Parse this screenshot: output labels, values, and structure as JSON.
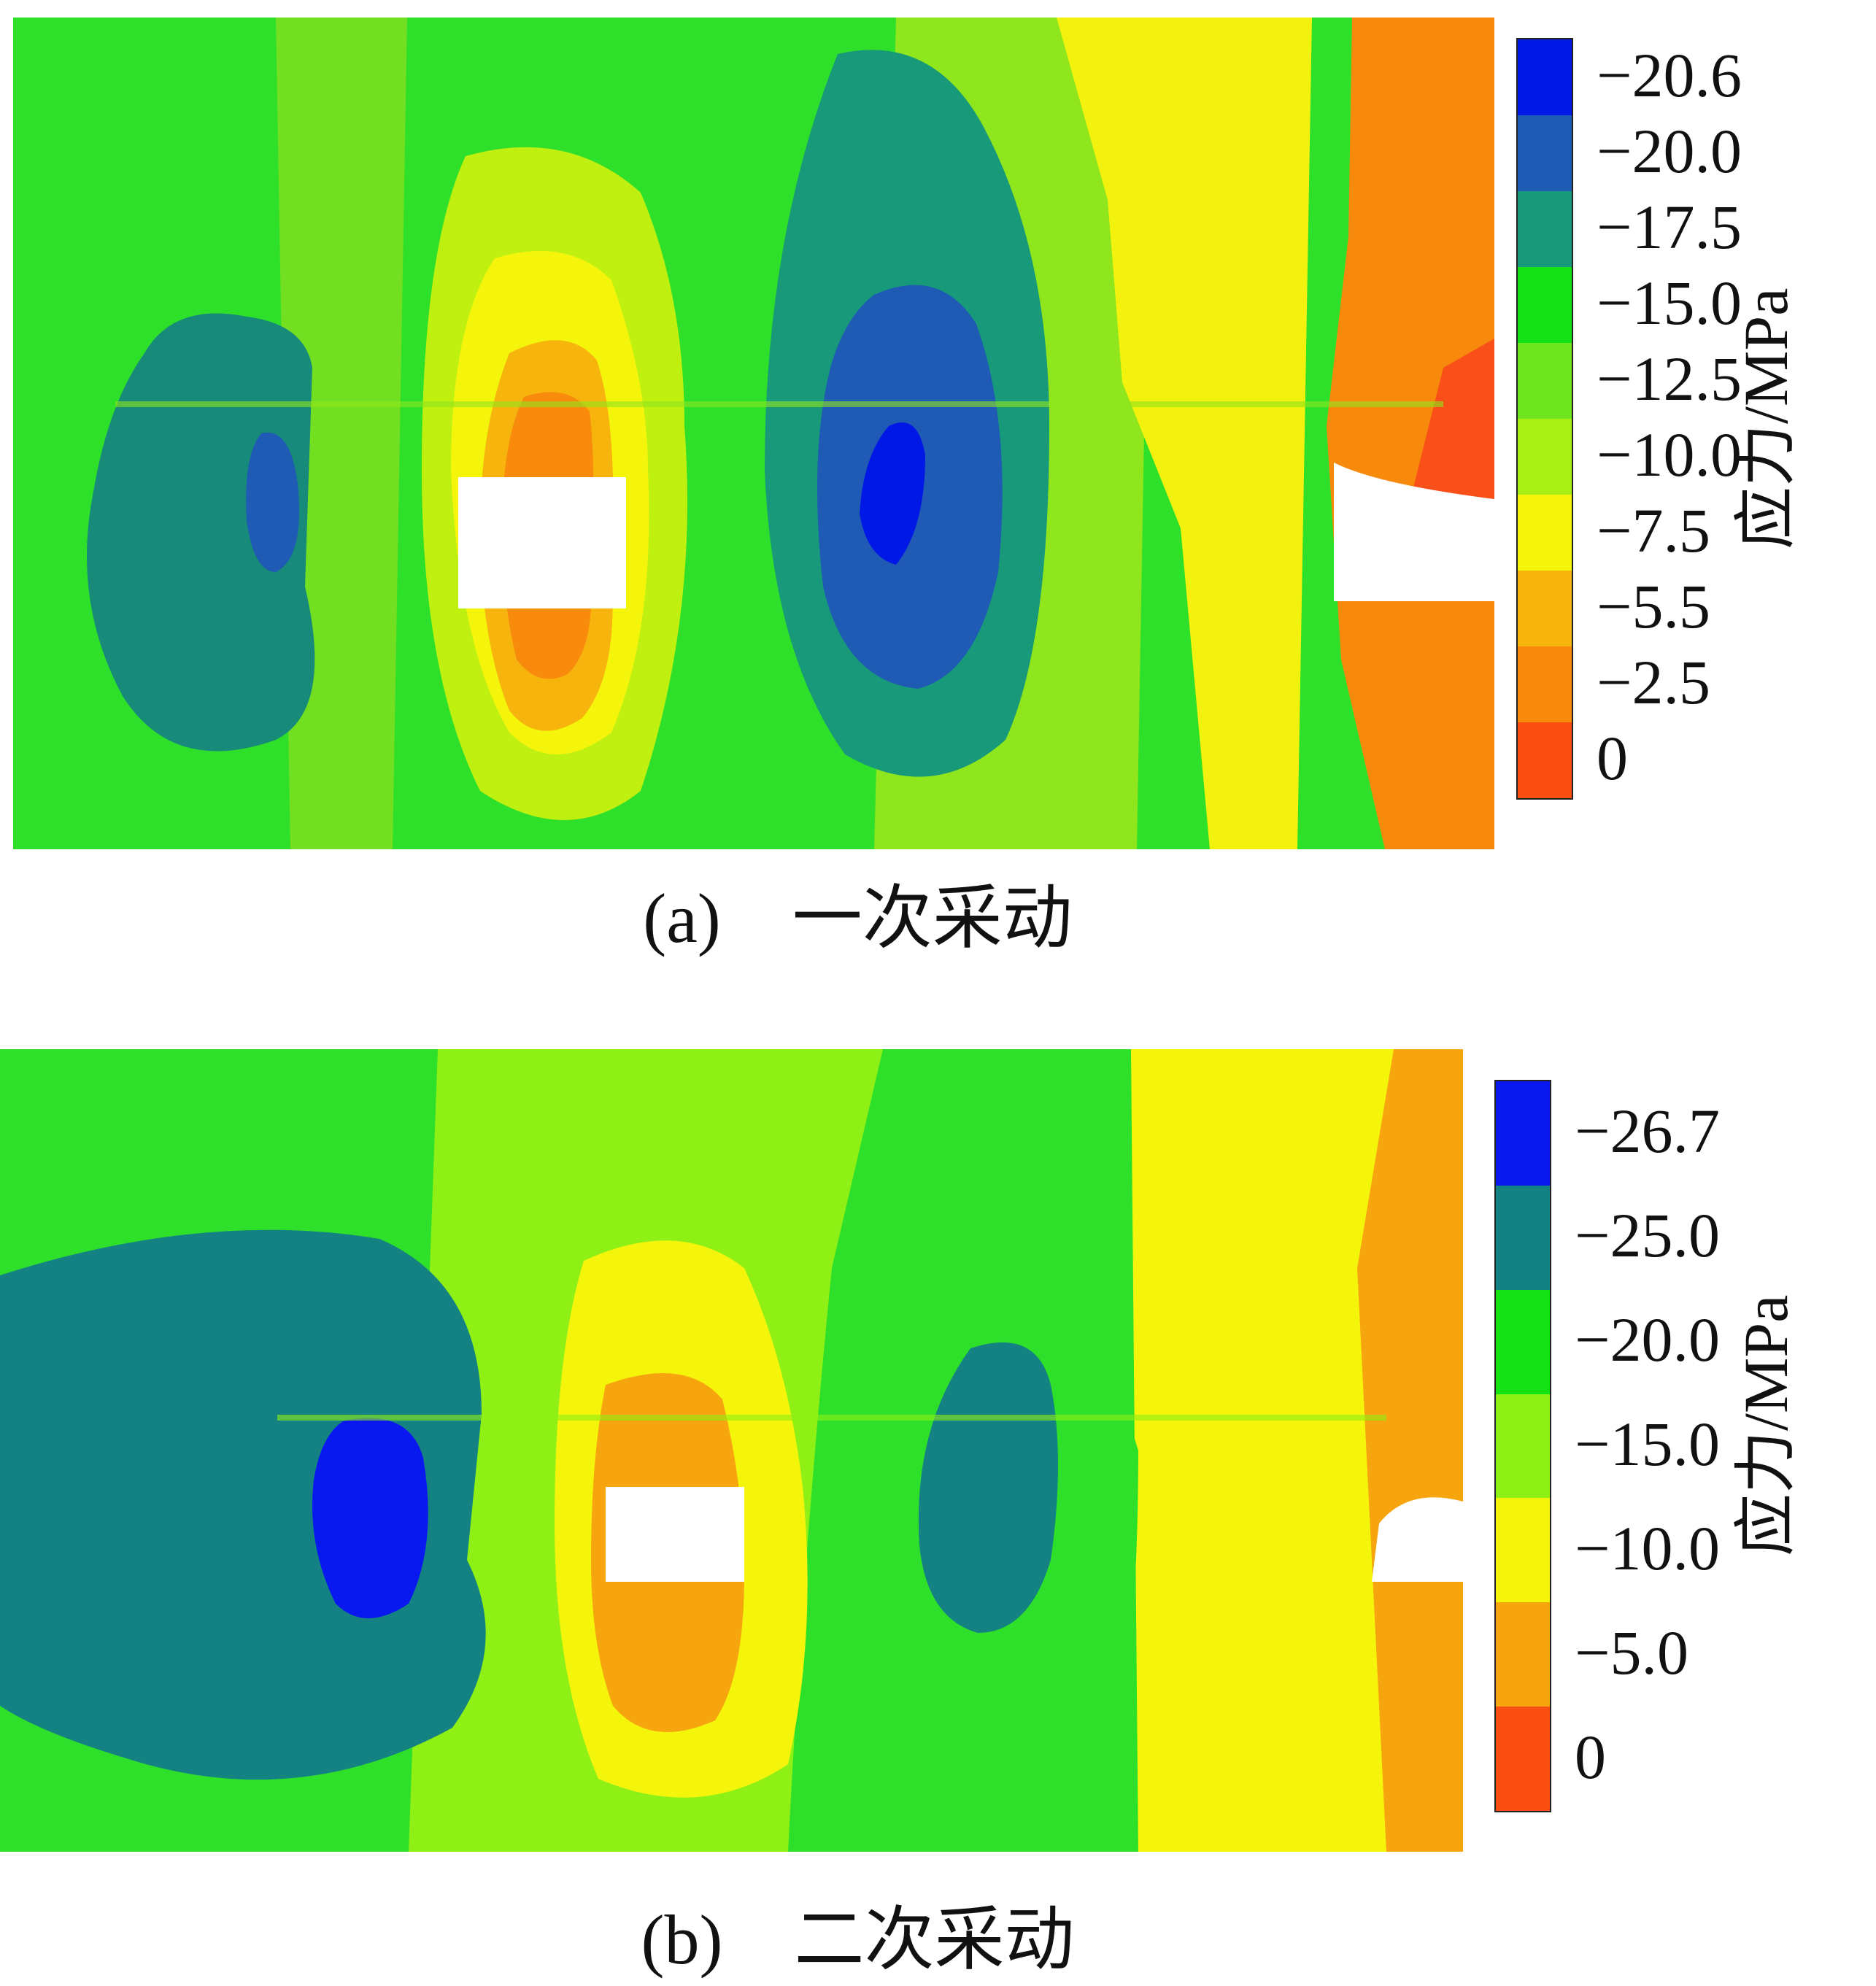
{
  "chart_data": [
    {
      "type": "heatmap",
      "panel_label": "(a)",
      "caption": "一次采动",
      "colorbar_title": "应力/MPa",
      "colorbar_ticks": [
        "−20.6",
        "−20.0",
        "−17.5",
        "−15.0",
        "−12.5",
        "−10.0",
        "−7.5",
        "−5.5",
        "−2.5",
        "0"
      ],
      "colorbar_colors": [
        "#0018e6",
        "#1f5ab5",
        "#17997a",
        "#14e214",
        "#6fe61f",
        "#a8ef16",
        "#f5f50c",
        "#f6b40d",
        "#f88b0c",
        "#fb4e12"
      ]
    },
    {
      "type": "heatmap",
      "panel_label": "(b)",
      "caption": "二次采动",
      "colorbar_title": "应力/MPa",
      "colorbar_ticks": [
        "−26.7",
        "−25.0",
        "−20.0",
        "−15.0",
        "−10.0",
        "−5.0",
        "0"
      ],
      "colorbar_colors": [
        "#0a18f0",
        "#148282",
        "#14e214",
        "#8ff015",
        "#f5f50c",
        "#f6a50f",
        "#fb4e12"
      ]
    }
  ]
}
